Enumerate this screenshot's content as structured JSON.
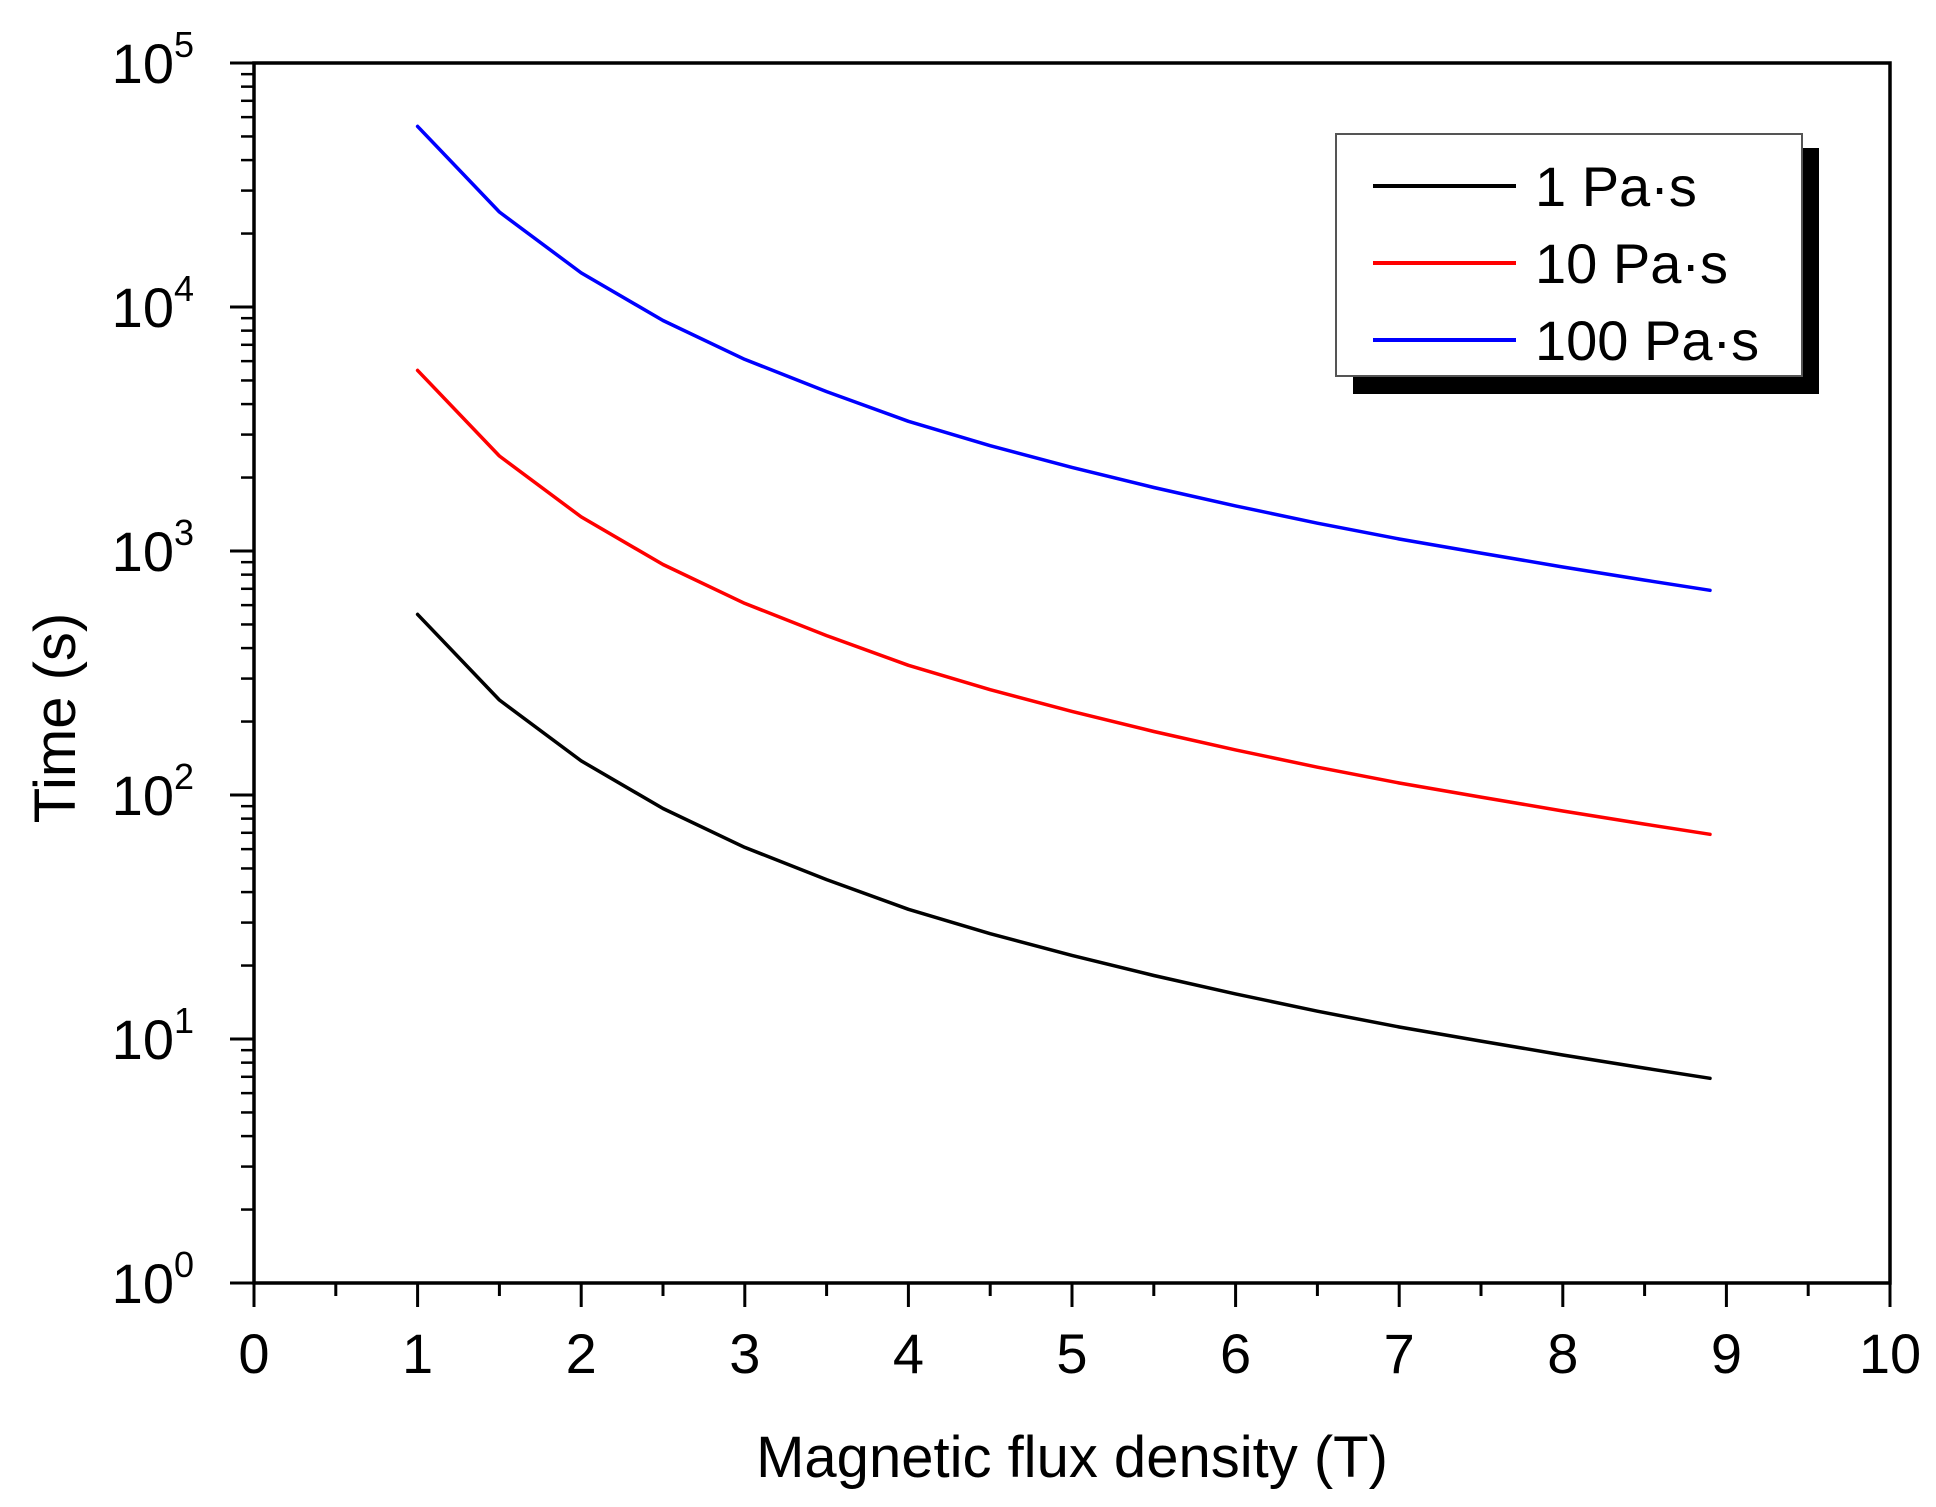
{
  "chart_data": {
    "type": "line",
    "title": "",
    "xlabel": "Magnetic flux density (T)",
    "ylabel": "Time (s)",
    "xlim": [
      0,
      10
    ],
    "ylim": [
      1,
      100000
    ],
    "yscale": "log",
    "x_ticks": [
      "0",
      "1",
      "2",
      "3",
      "4",
      "5",
      "6",
      "7",
      "8",
      "9",
      "10"
    ],
    "y_ticks": [
      {
        "base": "10",
        "exp": "0"
      },
      {
        "base": "10",
        "exp": "1"
      },
      {
        "base": "10",
        "exp": "2"
      },
      {
        "base": "10",
        "exp": "3"
      },
      {
        "base": "10",
        "exp": "4"
      },
      {
        "base": "10",
        "exp": "5"
      }
    ],
    "legend_position": "top-right",
    "series": [
      {
        "name": "1 Pa·s",
        "color": "#000000",
        "x": [
          1,
          1.5,
          2,
          2.5,
          3,
          3.5,
          4,
          4.5,
          5,
          5.5,
          6,
          6.5,
          7,
          7.5,
          8,
          8.5,
          8.9
        ],
        "y": [
          550,
          245,
          138,
          88,
          61,
          45,
          34,
          27,
          22,
          18.2,
          15.3,
          13.0,
          11.2,
          9.8,
          8.6,
          7.6,
          6.9
        ]
      },
      {
        "name": "10 Pa·s",
        "color": "#ff0000",
        "x": [
          1,
          1.5,
          2,
          2.5,
          3,
          3.5,
          4,
          4.5,
          5,
          5.5,
          6,
          6.5,
          7,
          7.5,
          8,
          8.5,
          8.9
        ],
        "y": [
          5500,
          2450,
          1380,
          880,
          610,
          450,
          340,
          270,
          220,
          182,
          153,
          130,
          112,
          98,
          86,
          76,
          69
        ]
      },
      {
        "name": "100 Pa·s",
        "color": "#0000ff",
        "x": [
          1,
          1.5,
          2,
          2.5,
          3,
          3.5,
          4,
          4.5,
          5,
          5.5,
          6,
          6.5,
          7,
          7.5,
          8,
          8.5,
          8.9
        ],
        "y": [
          55000,
          24500,
          13800,
          8800,
          6100,
          4500,
          3400,
          2700,
          2200,
          1820,
          1530,
          1300,
          1120,
          980,
          860,
          760,
          690
        ]
      }
    ]
  }
}
